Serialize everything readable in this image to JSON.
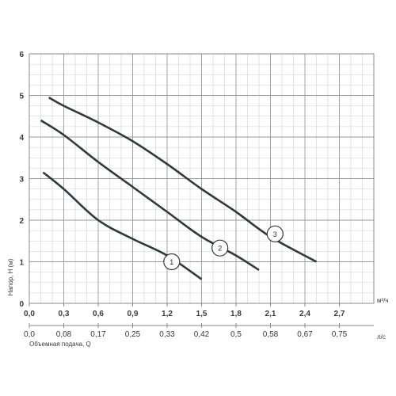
{
  "chart_data": {
    "type": "line",
    "xlabel": "Объемная подача, Q",
    "ylabel": "Напор, H (м)",
    "x_unit": "м³/ч",
    "x2_unit": "л/с",
    "xlim": [
      0,
      3.0
    ],
    "ylim": [
      0,
      6
    ],
    "grid": true,
    "x_ticks": [
      "0,0",
      "0,3",
      "0,6",
      "0,9",
      "1,2",
      "1,5",
      "1,8",
      "2,1",
      "2,4",
      "2,7"
    ],
    "x_tick_values": [
      0,
      0.3,
      0.6,
      0.9,
      1.2,
      1.5,
      1.8,
      2.1,
      2.4,
      2.7
    ],
    "x2_ticks": [
      "0,0",
      "0,08",
      "0,17",
      "0,25",
      "0,33",
      "0,42",
      "0,5",
      "0,58",
      "0,67",
      "0,75"
    ],
    "y_ticks": [
      "0",
      "1",
      "2",
      "3",
      "4",
      "5",
      "6"
    ],
    "y_tick_values": [
      0,
      1,
      2,
      3,
      4,
      5,
      6
    ],
    "series": [
      {
        "name": "1",
        "label_at": [
          1.24,
          1.0
        ],
        "points": [
          [
            0.12,
            3.15
          ],
          [
            0.3,
            2.75
          ],
          [
            0.6,
            2.0
          ],
          [
            0.9,
            1.55
          ],
          [
            1.2,
            1.15
          ],
          [
            1.5,
            0.58
          ]
        ]
      },
      {
        "name": "2",
        "label_at": [
          1.66,
          1.33
        ],
        "points": [
          [
            0.1,
            4.4
          ],
          [
            0.3,
            4.05
          ],
          [
            0.6,
            3.4
          ],
          [
            0.9,
            2.8
          ],
          [
            1.2,
            2.2
          ],
          [
            1.5,
            1.6
          ],
          [
            1.8,
            1.15
          ],
          [
            2.0,
            0.8
          ]
        ]
      },
      {
        "name": "3",
        "label_at": [
          2.14,
          1.67
        ],
        "points": [
          [
            0.17,
            4.95
          ],
          [
            0.3,
            4.75
          ],
          [
            0.6,
            4.35
          ],
          [
            0.9,
            3.9
          ],
          [
            1.2,
            3.35
          ],
          [
            1.5,
            2.75
          ],
          [
            1.8,
            2.2
          ],
          [
            2.1,
            1.6
          ],
          [
            2.5,
            1.0
          ]
        ]
      }
    ]
  }
}
